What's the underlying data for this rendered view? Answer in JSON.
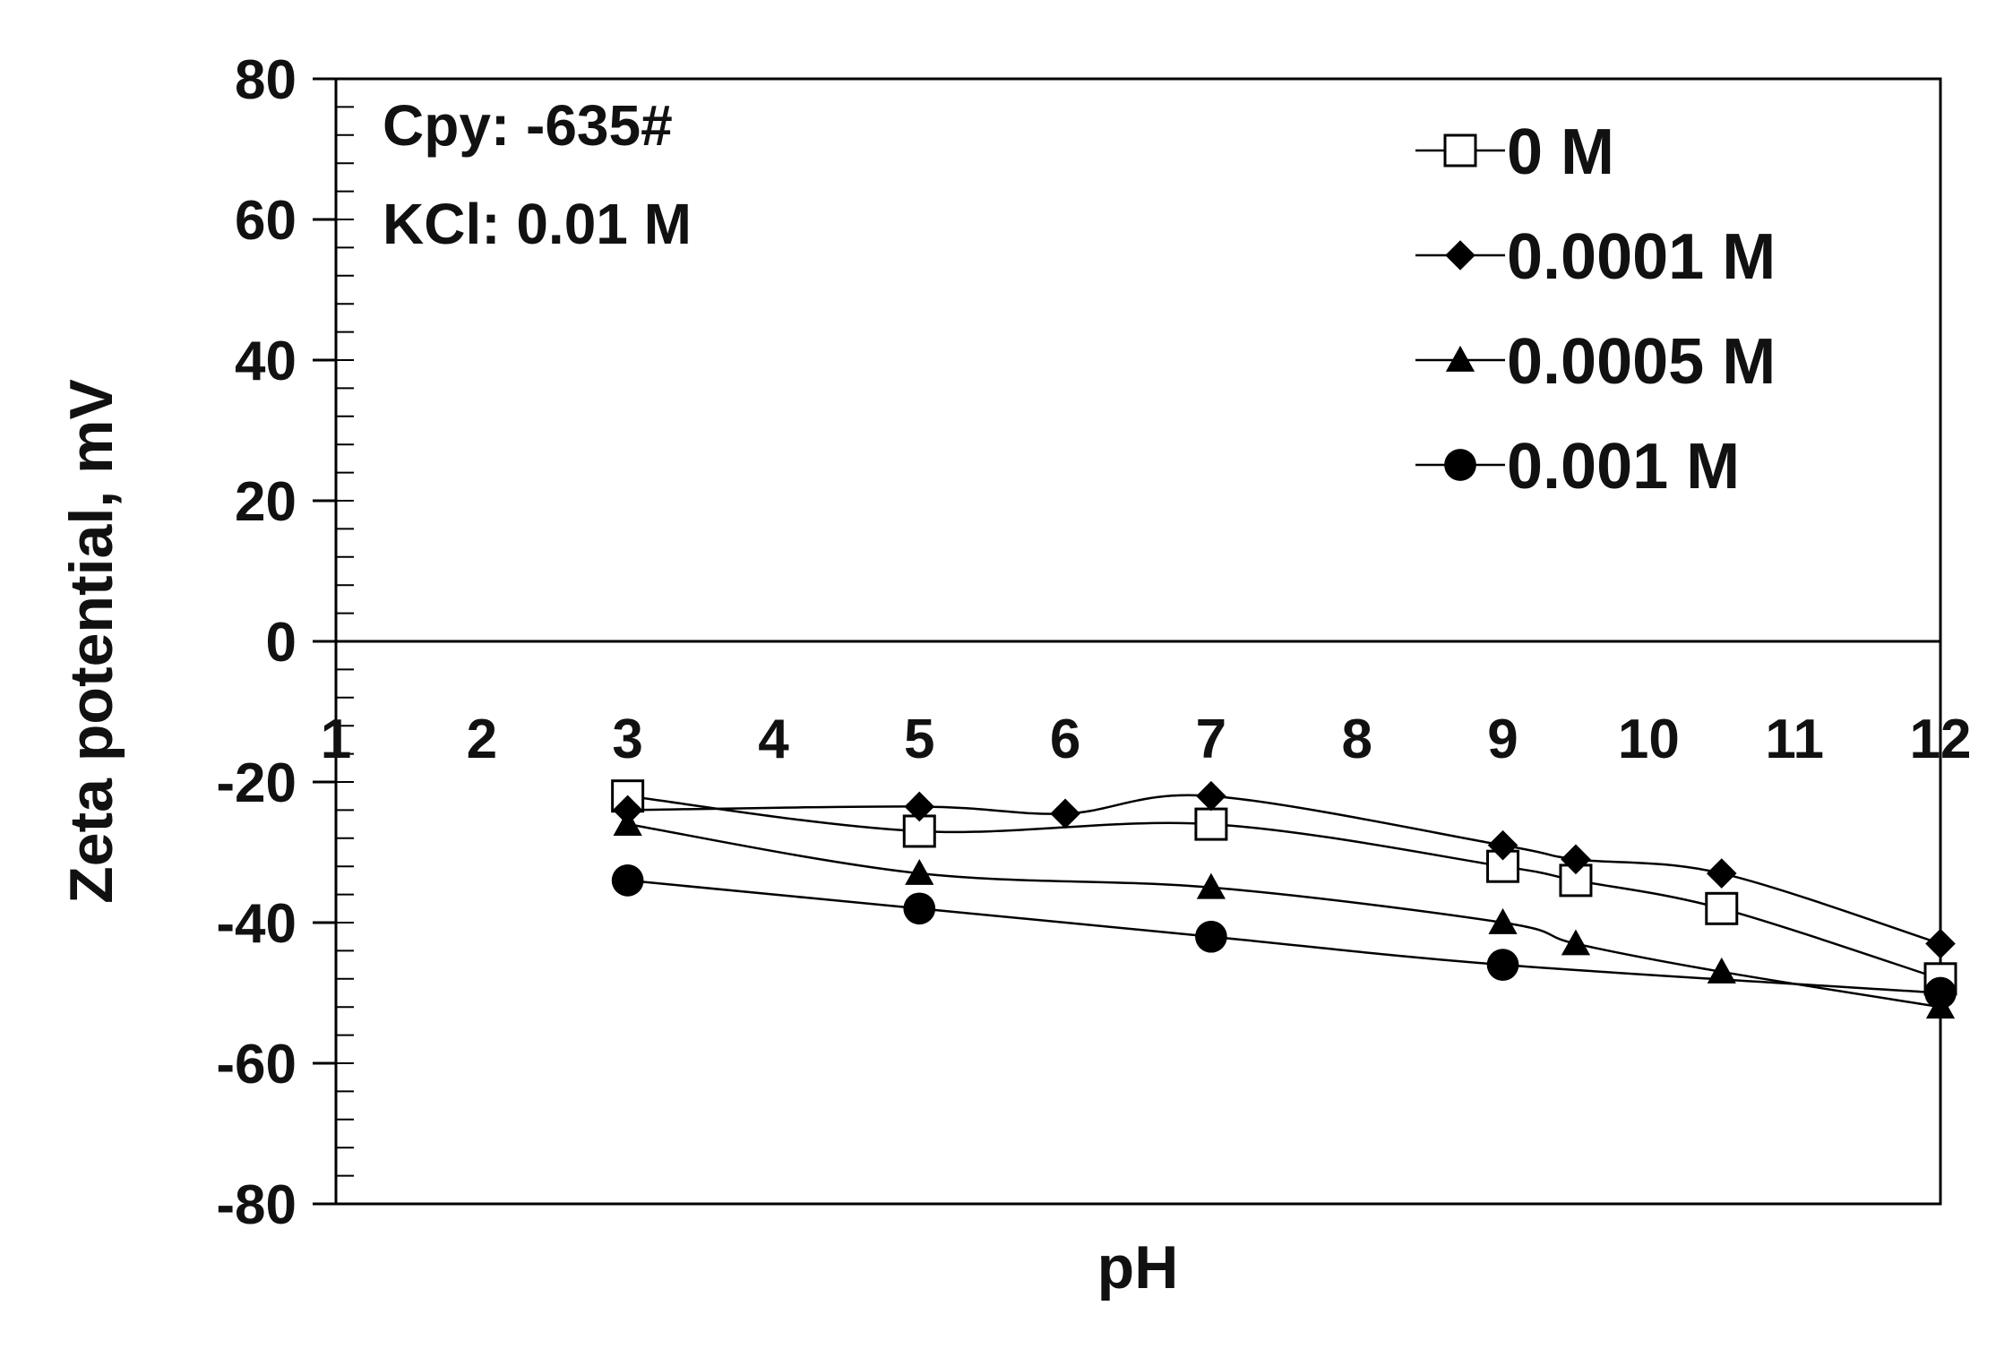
{
  "chart_data": {
    "type": "line",
    "title": "",
    "xlabel": "pH",
    "ylabel": "Zeta potential, mV",
    "xlim": [
      1,
      12
    ],
    "ylim": [
      -80,
      80
    ],
    "x_ticks": [
      {
        "value": 1,
        "label": "1"
      },
      {
        "value": 2,
        "label": "2"
      },
      {
        "value": 3,
        "label": "3"
      },
      {
        "value": 4,
        "label": "4"
      },
      {
        "value": 5,
        "label": "5"
      },
      {
        "value": 6,
        "label": "6"
      },
      {
        "value": 7,
        "label": "7"
      },
      {
        "value": 8,
        "label": "8"
      },
      {
        "value": 9,
        "label": "9"
      },
      {
        "value": 10,
        "label": "10"
      },
      {
        "value": 11,
        "label": "11"
      },
      {
        "value": 12,
        "label": "12"
      }
    ],
    "y_ticks": [
      {
        "value": 80,
        "label": "80"
      },
      {
        "value": 60,
        "label": "60"
      },
      {
        "value": 40,
        "label": "40"
      },
      {
        "value": 20,
        "label": "20"
      },
      {
        "value": 0,
        "label": "0"
      },
      {
        "value": -20,
        "label": "-20"
      },
      {
        "value": -40,
        "label": "-40"
      },
      {
        "value": -60,
        "label": "-60"
      },
      {
        "value": -80,
        "label": "-80"
      }
    ],
    "y_minor_step": 4,
    "grid": false,
    "legend_position": "top-right",
    "annotations": [
      "Cpy: -635#",
      "KCl: 0.01 M"
    ],
    "series": [
      {
        "name": "0 M",
        "marker": "open-square",
        "x": [
          3,
          5,
          7,
          9,
          9.5,
          10.5,
          12
        ],
        "y": [
          -22,
          -27,
          -26,
          -32,
          -34,
          -38,
          -48
        ]
      },
      {
        "name": "0.0001 M",
        "marker": "filled-diamond",
        "x": [
          3,
          5,
          6,
          7,
          9,
          9.5,
          10.5,
          12
        ],
        "y": [
          -24,
          -23.5,
          -24.5,
          -22,
          -29,
          -31,
          -33,
          -43
        ]
      },
      {
        "name": "0.0005 M",
        "marker": "filled-triangle",
        "x": [
          3,
          5,
          7,
          9,
          9.5,
          10.5,
          12
        ],
        "y": [
          -26,
          -33,
          -35,
          -40,
          -43,
          -47,
          -52
        ]
      },
      {
        "name": "0.001 M",
        "marker": "filled-circle",
        "x": [
          3,
          5,
          7,
          9,
          12
        ],
        "y": [
          -34,
          -38,
          -42,
          -46,
          -50
        ]
      }
    ]
  }
}
